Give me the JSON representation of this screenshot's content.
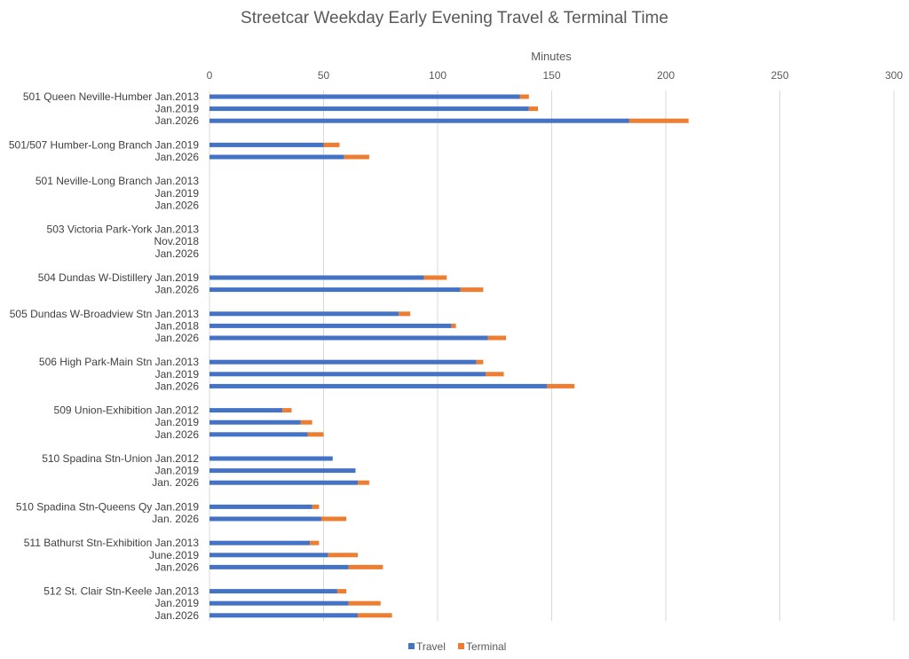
{
  "chart_data": {
    "type": "bar",
    "orientation": "horizontal",
    "stacked": true,
    "title": "Streetcar Weekday Early Evening Travel & Terminal Time",
    "xlabel": "Minutes",
    "xlim": [
      0,
      300
    ],
    "xticks": [
      0,
      50,
      100,
      150,
      200,
      250,
      300
    ],
    "grid": true,
    "legend_position": "bottom",
    "categories": [
      "501 Queen Neville-Humber Jan.2013",
      "Jan.2019",
      "Jan.2026",
      "",
      "501/507 Humber-Long Branch Jan.2019",
      "Jan.2026",
      "",
      "501 Neville-Long Branch Jan.2013",
      "Jan.2019",
      "Jan.2026",
      "",
      "503 Victoria Park-York Jan.2013",
      "Nov.2018",
      "Jan.2026",
      "",
      "504 Dundas W-Distillery Jan.2019",
      "Jan.2026",
      "",
      "505 Dundas W-Broadview Stn Jan.2013",
      "Jan.2018",
      "Jan.2026",
      "",
      "506 High Park-Main Stn Jan.2013",
      "Jan.2019",
      "Jan.2026",
      "",
      "509 Union-Exhibition Jan.2012",
      "Jan.2019",
      "Jan.2026",
      "",
      "510 Spadina Stn-Union Jan.2012",
      "Jan.2019",
      "Jan. 2026",
      "",
      "510 Spadina Stn-Queens Qy Jan.2019",
      "Jan. 2026",
      "",
      "511 Bathurst Stn-Exhibition Jan.2013",
      "June.2019",
      "Jan.2026",
      "",
      "512 St. Clair Stn-Keele Jan.2013",
      "Jan.2019",
      "Jan.2026"
    ],
    "series": [
      {
        "name": "Travel",
        "color": "#4472c4",
        "values": [
          136,
          140,
          184,
          null,
          50,
          59,
          null,
          null,
          null,
          null,
          null,
          null,
          null,
          null,
          null,
          94,
          110,
          null,
          83,
          106,
          122,
          null,
          117,
          121,
          148,
          null,
          32,
          40,
          43,
          null,
          54,
          64,
          65,
          null,
          45,
          49,
          null,
          44,
          52,
          61,
          null,
          56,
          61,
          65
        ]
      },
      {
        "name": "Terminal",
        "color": "#ed7d31",
        "values": [
          4,
          4,
          26,
          null,
          7,
          11,
          null,
          null,
          null,
          null,
          null,
          null,
          null,
          null,
          null,
          10,
          10,
          null,
          5,
          2,
          8,
          null,
          3,
          8,
          12,
          null,
          4,
          5,
          7,
          null,
          0,
          0,
          5,
          null,
          3,
          11,
          null,
          4,
          13,
          15,
          null,
          4,
          14,
          15
        ]
      }
    ]
  }
}
